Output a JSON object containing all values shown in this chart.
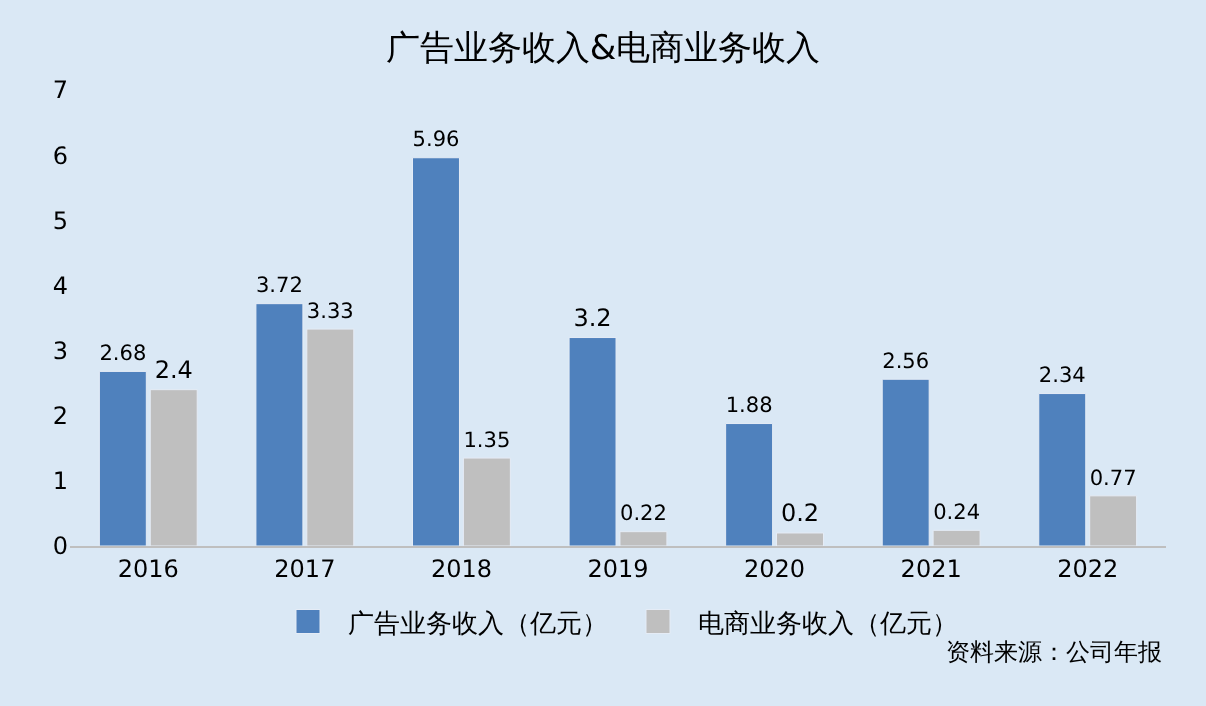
{
  "chart_data": {
    "type": "bar",
    "title": "广告业务收入&电商业务收入",
    "categories": [
      "2016",
      "2017",
      "2018",
      "2019",
      "2020",
      "2021",
      "2022"
    ],
    "series": [
      {
        "name": "广告业务收入（亿元）",
        "color": "#4f81bd",
        "values": [
          2.68,
          3.72,
          5.96,
          3.2,
          1.88,
          2.56,
          2.34
        ]
      },
      {
        "name": "电商业务收入（亿元）",
        "color": "#bfbfbf",
        "values": [
          2.4,
          3.33,
          1.35,
          0.22,
          0.2,
          0.24,
          0.77
        ]
      }
    ],
    "ylim": [
      0,
      7
    ],
    "yticks": [
      0,
      1,
      2,
      3,
      4,
      5,
      6,
      7
    ],
    "grid": false,
    "legend": "bottom",
    "data_labels": true,
    "annotations": [
      "资料来源：公司年报"
    ]
  }
}
